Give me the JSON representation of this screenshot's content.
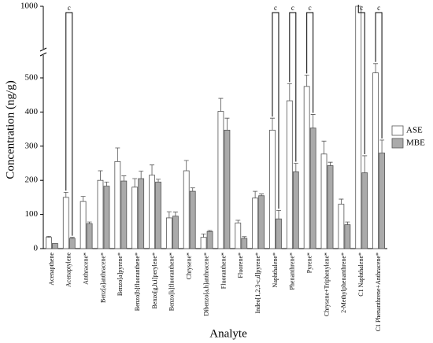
{
  "chart_data": {
    "type": "bar",
    "y_label": "Concentration (ng/g)",
    "x_label": "Analyte",
    "categories": [
      "Acenapthene",
      "Acenaptylene",
      "Anthracene*",
      "Benz[a]anthracene*",
      "Benzo[a]pyrene*",
      "Benzo[b]fluoranthene*",
      "Benzo[g,h,i]perylene*",
      "Benzo[k]fluoranthene*",
      "Chrysene*",
      "Dibenzo[a,h]anthracene*",
      "Fluoranthene*",
      "Fluorene*",
      "Indeo[1,2,3-c,d]pyrene*",
      "Naphthalene*",
      "Phenanthrene*",
      "Pyrene*",
      "Chrysene+Triphenylene*",
      "2-Methylphenanthrene*",
      "C1 Naphthalene*",
      "C1 Phenanthrene+Anthracene*"
    ],
    "series": [
      {
        "name": "ASE",
        "color": "#ffffff",
        "values": [
          33,
          150,
          138,
          200,
          255,
          180,
          215,
          90,
          228,
          33,
          402,
          75,
          148,
          347,
          433,
          475,
          277,
          130,
          1000,
          535
        ],
        "errors": [
          3,
          15,
          15,
          28,
          40,
          25,
          30,
          18,
          30,
          10,
          38,
          8,
          20,
          35,
          50,
          45,
          38,
          15,
          0,
          65
        ]
      },
      {
        "name": "MBE",
        "color": "#aaaaaa",
        "values": [
          15,
          30,
          73,
          183,
          198,
          205,
          195,
          95,
          168,
          50,
          347,
          30,
          155,
          87,
          225,
          353,
          243,
          70,
          222,
          280
        ],
        "errors": [
          0,
          3,
          5,
          12,
          15,
          22,
          8,
          12,
          10,
          3,
          35,
          5,
          5,
          25,
          25,
          40,
          10,
          8,
          50,
          38
        ]
      }
    ],
    "significance": [
      null,
      "c",
      null,
      null,
      null,
      null,
      null,
      null,
      null,
      null,
      null,
      null,
      null,
      "c",
      "c",
      "c",
      null,
      null,
      "c",
      "c"
    ],
    "ylim": [
      0,
      1000
    ],
    "yticks": [
      0,
      100,
      200,
      300,
      400,
      500,
      1000
    ],
    "axis_break": true,
    "legend": "right"
  }
}
